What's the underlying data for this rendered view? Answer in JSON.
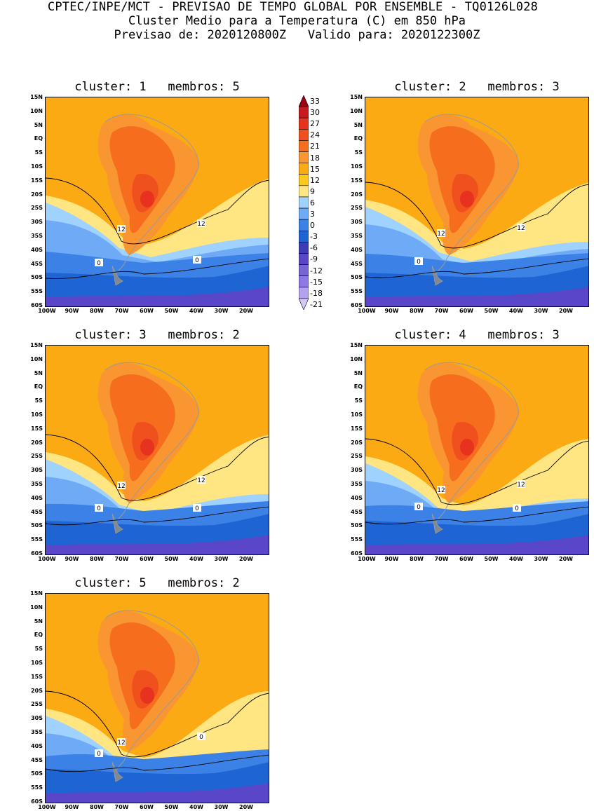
{
  "header": {
    "line1": "CPTEC/INPE/MCT - PREVISAO DE TEMPO GLOBAL POR ENSEMBLE - TQ0126L028",
    "line2": "Cluster Medio para a Temperatura (C) em 850 hPa",
    "line3": "Previsao de: 2020120800Z   Valido para: 2020122300Z"
  },
  "lat_labels": [
    "15N",
    "10N",
    "5N",
    "EQ",
    "5S",
    "10S",
    "15S",
    "20S",
    "25S",
    "30S",
    "35S",
    "40S",
    "45S",
    "50S",
    "55S",
    "60S"
  ],
  "lon_labels": [
    "100W",
    "90W",
    "80W",
    "70W",
    "60W",
    "50W",
    "40W",
    "30W",
    "20W"
  ],
  "colorbar": {
    "levels": [
      "33",
      "30",
      "27",
      "24",
      "21",
      "18",
      "15",
      "12",
      "9",
      "6",
      "3",
      "0",
      "-3",
      "-6",
      "-9",
      "-12",
      "-15",
      "-18",
      "-21"
    ],
    "colors": [
      "#a00014",
      "#c81a1e",
      "#e6321e",
      "#f0501e",
      "#f76d1e",
      "#fa9632",
      "#fbaa14",
      "#fdc81e",
      "#ffe682",
      "#a0d2ff",
      "#6eaaf5",
      "#3c82e6",
      "#1e64d2",
      "#3c3cb4",
      "#5a46c8",
      "#7864d2",
      "#8c78e6",
      "#b4a0f0",
      "#d2c8fa"
    ]
  },
  "panels": [
    {
      "title": "cluster: 1   membros: 5",
      "labels": [
        "12",
        "12",
        "0",
        "0"
      ]
    },
    {
      "title": "cluster: 2   membros: 3",
      "labels": [
        "12",
        "12",
        "0"
      ]
    },
    {
      "title": "cluster: 3   membros: 2",
      "labels": [
        "12",
        "12",
        "0",
        "0"
      ]
    },
    {
      "title": "cluster: 4   membros: 3",
      "labels": [
        "12",
        "12",
        "0",
        "0"
      ]
    },
    {
      "title": "cluster: 5   membros: 2",
      "labels": [
        "12",
        "0",
        "0"
      ]
    }
  ]
}
